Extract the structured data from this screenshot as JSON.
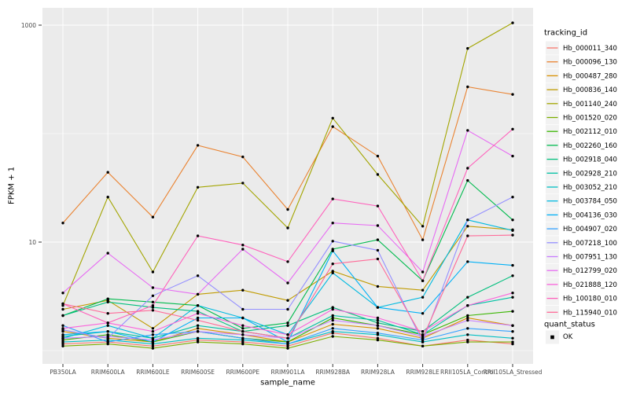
{
  "chart_data": {
    "type": "line",
    "title": "",
    "xlabel": "sample_name",
    "ylabel": "FPKM + 1",
    "y_scale": "log10",
    "ylim": [
      0.75,
      1445
    ],
    "grid": true,
    "y_major_ticks": [
      {
        "value": 10,
        "label": "10"
      },
      {
        "value": 1000,
        "label": "1000"
      }
    ],
    "y_minor_gridlines": [
      1,
      100
    ],
    "categories": [
      "PB350LA",
      "RRIM600LA",
      "RRIM600LE",
      "RRIM600SE",
      "RRIM600PE",
      "RRIM901LA",
      "RRIM928BA",
      "RRIM928LA",
      "RRIM928LE",
      "RRII105LA_Control",
      "RRII105LA_Stressed"
    ],
    "legend_title": "tracking_id",
    "legend_position": "right",
    "quant_legend": {
      "title": "quant_status",
      "ok_label": "OK"
    },
    "series": [
      {
        "name": "Hb_000011_340",
        "color": "#F8766D",
        "values": [
          1.15,
          1.2,
          1.1,
          1.25,
          1.2,
          1.1,
          1.45,
          1.3,
          1.1,
          1.25,
          1.15
        ]
      },
      {
        "name": "Hb_000096_130",
        "color": "#EA8331",
        "values": [
          15,
          44,
          17,
          78,
          61,
          20,
          116,
          62,
          10.5,
          270,
          230
        ]
      },
      {
        "name": "Hb_000487_280",
        "color": "#D89000",
        "values": [
          1.5,
          1.3,
          1.2,
          1.6,
          1.4,
          1.2,
          1.75,
          1.6,
          1.3,
          2.0,
          1.7
        ]
      },
      {
        "name": "Hb_000836_140",
        "color": "#C09B00",
        "values": [
          2.4,
          2.9,
          1.6,
          3.3,
          3.6,
          2.9,
          5.4,
          3.9,
          3.6,
          14,
          13
        ]
      },
      {
        "name": "Hb_001140_240",
        "color": "#A3A500",
        "values": [
          2.6,
          26,
          5.3,
          32,
          35,
          13.5,
          139,
          42,
          14,
          610,
          1050
        ]
      },
      {
        "name": "Hb_001520_020",
        "color": "#7CAE00",
        "values": [
          1.1,
          1.15,
          1.05,
          1.2,
          1.15,
          1.05,
          1.35,
          1.25,
          1.1,
          1.2,
          1.2
        ]
      },
      {
        "name": "Hb_002112_010",
        "color": "#39B600",
        "values": [
          1.25,
          1.4,
          1.2,
          1.5,
          1.3,
          1.2,
          2.0,
          1.7,
          1.4,
          2.1,
          2.3
        ]
      },
      {
        "name": "Hb_002260_160",
        "color": "#00BB4E",
        "values": [
          2.1,
          3.0,
          2.8,
          2.6,
          1.6,
          1.8,
          8.6,
          10.5,
          4.4,
          37,
          16
        ]
      },
      {
        "name": "Hb_002918_040",
        "color": "#00BF7D",
        "values": [
          2.1,
          2.8,
          2.5,
          2.3,
          1.5,
          1.7,
          2.5,
          1.8,
          1.5,
          3.1,
          4.9
        ]
      },
      {
        "name": "Hb_002928_210",
        "color": "#00C1A3",
        "values": [
          1.35,
          1.5,
          1.3,
          1.7,
          1.5,
          1.3,
          2.1,
          1.9,
          1.4,
          2.6,
          3.1
        ]
      },
      {
        "name": "Hb_003052_210",
        "color": "#00BFC4",
        "values": [
          1.2,
          1.25,
          1.15,
          1.3,
          1.25,
          1.15,
          1.5,
          1.4,
          1.2,
          1.4,
          1.3
        ]
      },
      {
        "name": "Hb_003784_050",
        "color": "#00BAE0",
        "values": [
          1.3,
          1.7,
          1.3,
          2.6,
          2.0,
          1.4,
          5.2,
          2.5,
          3.1,
          16,
          12.8
        ]
      },
      {
        "name": "Hb_004136_030",
        "color": "#00B0F6",
        "values": [
          1.4,
          1.5,
          1.2,
          2.0,
          2.0,
          1.2,
          8.3,
          2.5,
          2.2,
          6.6,
          6.1
        ]
      },
      {
        "name": "Hb_004907_020",
        "color": "#35A2FF",
        "values": [
          1.7,
          1.2,
          1.4,
          1.5,
          1.3,
          1.15,
          1.6,
          1.45,
          1.25,
          1.6,
          1.5
        ]
      },
      {
        "name": "Hb_007218_100",
        "color": "#9590FF",
        "values": [
          1.55,
          1.3,
          3.2,
          4.9,
          2.4,
          2.4,
          10.2,
          8.4,
          1.2,
          16,
          26
        ]
      },
      {
        "name": "Hb_007951_130",
        "color": "#C77CFF",
        "values": [
          1.3,
          1.35,
          1.25,
          1.5,
          1.4,
          1.3,
          1.9,
          1.7,
          1.35,
          1.9,
          1.7
        ]
      },
      {
        "name": "Hb_012799_020",
        "color": "#E76BF3",
        "values": [
          3.4,
          7.9,
          3.8,
          3.3,
          8.6,
          4.2,
          15,
          14.2,
          5.3,
          107,
          62
        ]
      },
      {
        "name": "Hb_021888_120",
        "color": "#FA62DB",
        "values": [
          1.6,
          1.8,
          1.5,
          2.2,
          1.7,
          1.4,
          2.4,
          2.0,
          1.5,
          2.6,
          3.4
        ]
      },
      {
        "name": "Hb_100180_010",
        "color": "#FF62BC",
        "values": [
          2.7,
          1.8,
          2.6,
          11.4,
          9.4,
          6.6,
          25,
          21.5,
          4.4,
          48,
          110
        ]
      },
      {
        "name": "Hb_115940_010",
        "color": "#FF6A98",
        "values": [
          2.7,
          2.2,
          2.35,
          1.9,
          1.5,
          1.3,
          6.3,
          7.0,
          1.3,
          11.4,
          11.6
        ]
      }
    ],
    "colors": {
      "panel_bg": "#EBEBEB",
      "gridline": "#FFFFFF",
      "point": "#000000",
      "tick_text": "#4D4D4D",
      "tick_mark": "#333333",
      "legend_key_bg": "#F2F2F2"
    }
  }
}
